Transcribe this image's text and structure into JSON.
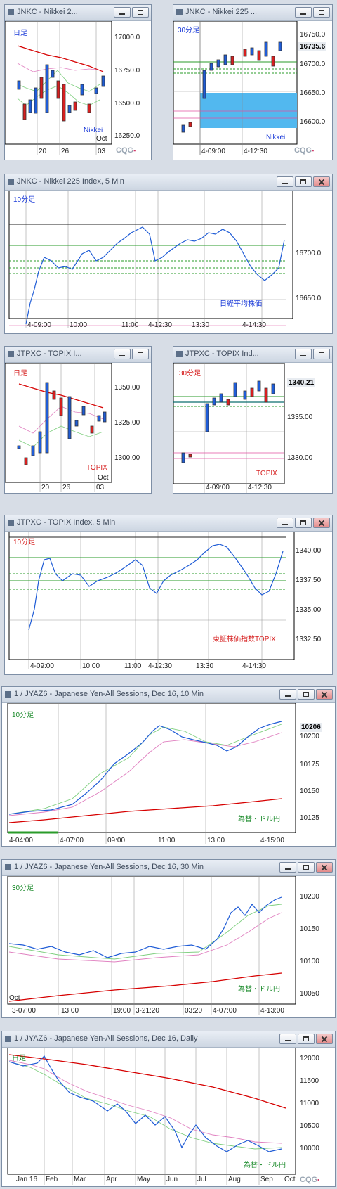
{
  "windows": [
    {
      "id": "w0",
      "title": "JNKC - Nikkei 2...",
      "tf": "日足",
      "tfColor": "#1a3ad8",
      "inst": "Nikkei",
      "instColor": "#1a3ad8",
      "yticks": [
        "17000.0",
        "16750.0",
        "16500.0",
        "16250.0"
      ],
      "xticks": [
        "20",
        "26",
        "03"
      ],
      "xsub": "Oct",
      "colors": {
        "up": "#1f5cd6",
        "down": "#d61f1f",
        "ma": "#d60000"
      }
    },
    {
      "id": "w1",
      "title": "JNKC - Nikkei 225 ...",
      "tf": "30分足",
      "tfColor": "#1a3ad8",
      "inst": "Nikkei",
      "instColor": "#1a3ad8",
      "yticks": [
        "16750.0",
        "16700.0",
        "16650.0",
        "16600.0"
      ],
      "xticks": [
        "4-09:00",
        "4-12:30"
      ],
      "price": "16735.6"
    },
    {
      "id": "w2",
      "title": "JNKC - Nikkei 225 Index, 5 Min",
      "tf": "10分足",
      "tfColor": "#1a3ad8",
      "inst": "日経平均株価",
      "instColor": "#1a3ad8",
      "yticks": [
        "16700.0",
        "16650.0"
      ],
      "xticks": [
        "4-09:00",
        "10:00",
        "11:00",
        "4-12:30",
        "13:30",
        "4-14:30"
      ]
    },
    {
      "id": "w3",
      "title": "JTPXC - TOPIX I...",
      "tf": "日足",
      "tfColor": "#d61f1f",
      "inst": "TOPIX",
      "instColor": "#d61f1f",
      "yticks": [
        "1350.00",
        "1325.00",
        "1300.00"
      ],
      "xticks": [
        "20",
        "26",
        "03"
      ],
      "xsub": "Oct"
    },
    {
      "id": "w4",
      "title": "JTPXC - TOPIX Ind...",
      "tf": "30分足",
      "tfColor": "#d61f1f",
      "inst": "TOPIX",
      "instColor": "#d61f1f",
      "yticks": [
        "1335.00",
        "1330.00"
      ],
      "xticks": [
        "4-09:00",
        "4-12:30"
      ],
      "price": "1340.21"
    },
    {
      "id": "w5",
      "title": "JTPXC - TOPIX Index, 5 Min",
      "tf": "10分足",
      "tfColor": "#d61f1f",
      "inst": "東証株価指数TOPIX",
      "instColor": "#d61f1f",
      "yticks": [
        "1340.00",
        "1337.50",
        "1335.00",
        "1332.50"
      ],
      "xticks": [
        "4-09:00",
        "10:00",
        "11:00",
        "4-12:30",
        "13:30",
        "4-14:30"
      ]
    },
    {
      "id": "w6",
      "title": "1 / JYAZ6 - Japanese Yen-All Sessions, Dec 16, 10 Min",
      "tf": "10分足",
      "tfColor": "#1a8a2a",
      "inst": "為替・ドル円",
      "instColor": "#1a8a2a",
      "yticks": [
        "10200",
        "10175",
        "10150",
        "10125"
      ],
      "xticks": [
        "4-04:00",
        "4-07:00",
        "09:00",
        "11:00",
        "13:00",
        "4-15:00"
      ],
      "price": "10206"
    },
    {
      "id": "w7",
      "title": "1 / JYAZ6 - Japanese Yen-All Sessions, Dec 16, 30 Min",
      "tf": "30分足",
      "tfColor": "#1a8a2a",
      "inst": "為替・ドル円",
      "instColor": "#1a8a2a",
      "yticks": [
        "10200",
        "10150",
        "10100",
        "10050"
      ],
      "xticks": [
        "3-07:00",
        "13:00",
        "19:00",
        "3-21:20",
        "03:20",
        "4-07:00",
        "4-13:00"
      ],
      "xsub": "Oct"
    },
    {
      "id": "w8",
      "title": "1 / JYAZ6 - Japanese Yen-All Sessions, Dec 16, Daily",
      "tf": "日足",
      "tfColor": "#1a8a2a",
      "inst": "為替・ドル円",
      "instColor": "#1a8a2a",
      "yticks": [
        "12000",
        "11500",
        "11000",
        "10500",
        "10000"
      ],
      "xticks": [
        "Jan 16",
        "Feb",
        "Mar",
        "Apr",
        "May",
        "Jun",
        "Jul",
        "Aug",
        "Sep",
        "Oct"
      ]
    }
  ],
  "brand": "CQG"
}
